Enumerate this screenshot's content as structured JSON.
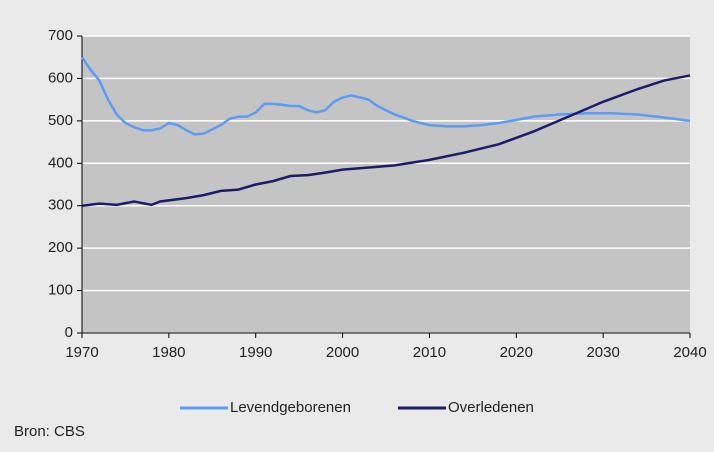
{
  "chart_data": {
    "type": "line",
    "source": "Bron: CBS",
    "xlim": [
      1970,
      2040
    ],
    "xticks": [
      1970,
      1980,
      1990,
      2000,
      2010,
      2020,
      2030,
      2040
    ],
    "ylim": [
      0,
      700
    ],
    "yticks": [
      0,
      100,
      200,
      300,
      400,
      500,
      600,
      700
    ],
    "grid": true,
    "legend": "bottom",
    "series": [
      {
        "name": "Levendgeborenen",
        "color": "#5c9cf5",
        "x": [
          1970,
          1971,
          1972,
          1973,
          1974,
          1975,
          1976,
          1977,
          1978,
          1979,
          1980,
          1981,
          1982,
          1983,
          1984,
          1985,
          1986,
          1987,
          1988,
          1989,
          1990,
          1991,
          1992,
          1993,
          1994,
          1995,
          1996,
          1997,
          1998,
          1999,
          2000,
          2001,
          2002,
          2003,
          2004,
          2005,
          2006,
          2007,
          2008,
          2009,
          2010,
          2012,
          2014,
          2016,
          2018,
          2020,
          2022,
          2025,
          2028,
          2031,
          2034,
          2037,
          2040
        ],
        "values": [
          650,
          620,
          595,
          550,
          515,
          495,
          485,
          478,
          478,
          482,
          495,
          490,
          478,
          468,
          470,
          480,
          490,
          505,
          510,
          510,
          520,
          540,
          540,
          538,
          535,
          535,
          525,
          520,
          525,
          545,
          555,
          560,
          555,
          550,
          535,
          525,
          515,
          508,
          500,
          495,
          490,
          487,
          487,
          490,
          495,
          502,
          510,
          515,
          518,
          518,
          515,
          508,
          500
        ]
      },
      {
        "name": "Overledenen",
        "color": "#1c1c6c",
        "x": [
          1970,
          1972,
          1974,
          1976,
          1978,
          1979,
          1982,
          1984,
          1986,
          1988,
          1990,
          1992,
          1994,
          1996,
          1998,
          2000,
          2003,
          2006,
          2010,
          2014,
          2018,
          2022,
          2026,
          2030,
          2034,
          2037,
          2040
        ],
        "values": [
          300,
          305,
          302,
          310,
          302,
          310,
          318,
          325,
          335,
          338,
          350,
          358,
          370,
          372,
          378,
          385,
          390,
          395,
          408,
          425,
          445,
          475,
          510,
          545,
          575,
          595,
          607
        ]
      }
    ]
  }
}
